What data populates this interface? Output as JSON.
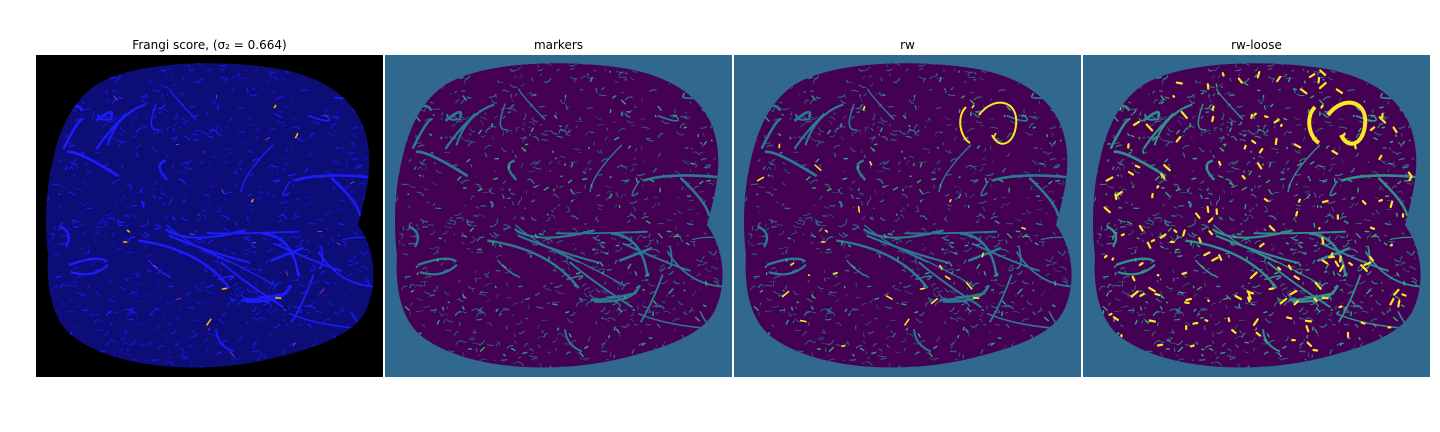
{
  "panels": [
    {
      "id": "frangi",
      "title": "Frangi score, (σ₂ = 0.664)",
      "colors": {
        "background": "#000000",
        "tissue": "#0d0d78",
        "vessel": "#1c1cff",
        "highlight": "#e0409a",
        "hot": "#ffb000"
      }
    },
    {
      "id": "markers",
      "title": "markers",
      "colors": {
        "background": "#31688e",
        "tissue": "#440154",
        "vessel": "#2a7b8e",
        "highlight": "#35b779",
        "hot": "#35b779"
      }
    },
    {
      "id": "rw",
      "title": "rw",
      "colors": {
        "background": "#31688e",
        "tissue": "#440154",
        "vessel": "#2a7b8e",
        "highlight": "#35b779",
        "hot": "#fde725"
      }
    },
    {
      "id": "rw-loose",
      "title": "rw-loose",
      "colors": {
        "background": "#31688e",
        "tissue": "#440154",
        "vessel": "#2f8f8c",
        "highlight": "#35b779",
        "hot": "#fde725"
      }
    }
  ]
}
